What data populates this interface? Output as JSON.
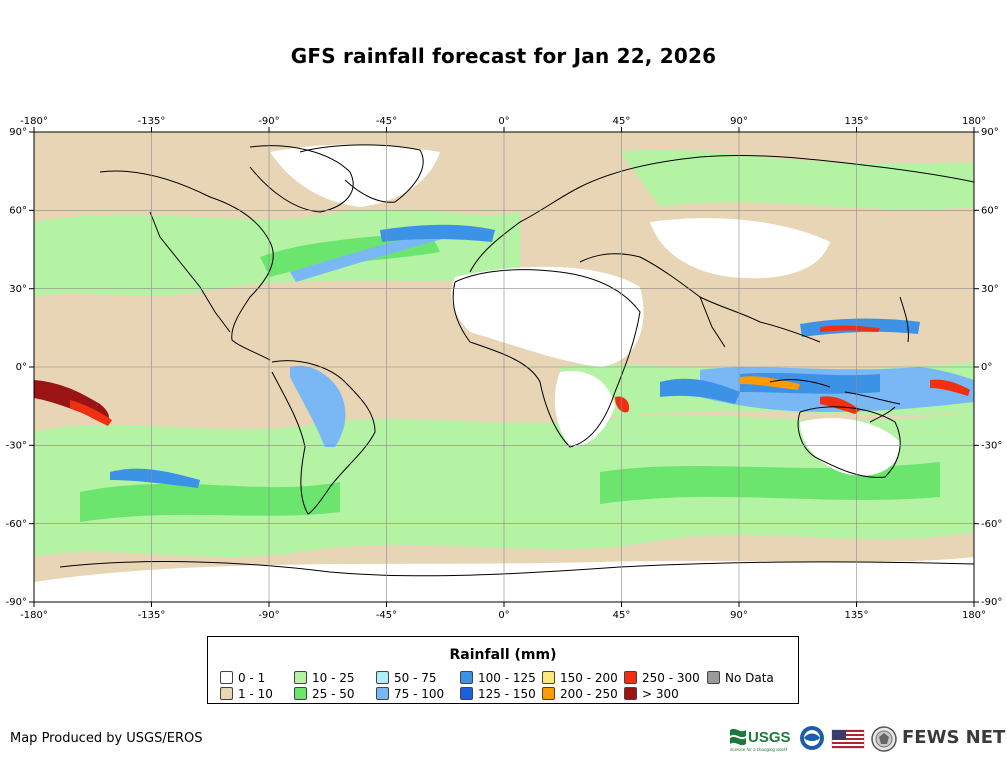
{
  "title": "GFS rainfall forecast for Jan 22, 2026",
  "map": {
    "lon_ticks": [
      "-180°",
      "-135°",
      "-90°",
      "-45°",
      "0°",
      "45°",
      "90°",
      "135°",
      "180°"
    ],
    "lat_ticks": [
      "90°",
      "60°",
      "30°",
      "0°",
      "-30°",
      "-60°",
      "-90°"
    ]
  },
  "legend": {
    "title": "Rainfall (mm)",
    "columns": [
      [
        {
          "label": "0 - 1",
          "color": "#ffffff"
        },
        {
          "label": "1 - 10",
          "color": "#e8d5b5"
        }
      ],
      [
        {
          "label": "10 - 25",
          "color": "#b4f2a4"
        },
        {
          "label": "25 - 50",
          "color": "#6be56e"
        }
      ],
      [
        {
          "label": "50 - 75",
          "color": "#aeeefa"
        },
        {
          "label": "75 - 100",
          "color": "#79b8f5"
        }
      ],
      [
        {
          "label": "100 - 125",
          "color": "#3c93e6"
        },
        {
          "label": "125 - 150",
          "color": "#1c5fe0"
        }
      ],
      [
        {
          "label": "150 - 200",
          "color": "#ffe87a"
        },
        {
          "label": "200 - 250",
          "color": "#ff9a00"
        }
      ],
      [
        {
          "label": "250 - 300",
          "color": "#f03010"
        },
        {
          "label": "> 300",
          "color": "#9b1414"
        }
      ],
      [
        {
          "label": "No Data",
          "color": "#9a9a9a"
        }
      ]
    ]
  },
  "footer": {
    "credit": "Map Produced by USGS/EROS",
    "logo_usgs": "USGS",
    "logo_usgs_tagline": "science for a changing world",
    "logo_fews": "FEWS NET"
  }
}
